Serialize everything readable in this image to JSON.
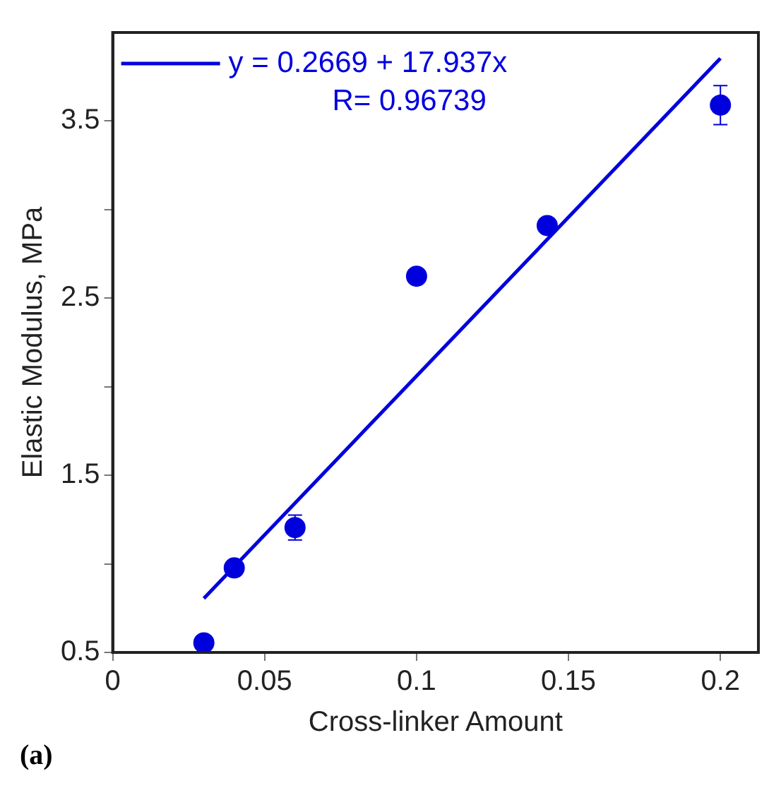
{
  "chart_data": {
    "type": "scatter",
    "xlabel": "Cross-linker Amount",
    "ylabel": "Elastic Modulus, MPa",
    "xlim": [
      0,
      0.2125
    ],
    "xticks": [
      0,
      0.05,
      0.1,
      0.15,
      0.2
    ],
    "ylim": [
      0.5,
      4.0
    ],
    "yticks": [
      0.5,
      {
        "value": 1,
        "label": null
      },
      1.5,
      {
        "value": 2,
        "label": null
      },
      2.5,
      {
        "value": 3,
        "label": null
      },
      3.5
    ],
    "grid": false,
    "legend": "top left",
    "series": [
      {
        "marker": "circle",
        "color": "#0000dd",
        "x": [
          0.03,
          0.04,
          0.06,
          0.1,
          0.143,
          0.2
        ],
        "values": [
          0.554,
          0.977,
          1.205,
          2.624,
          2.91,
          3.59
        ],
        "errors": [
          null,
          null,
          0.07,
          null,
          null,
          0.11
        ]
      },
      {
        "type": "line",
        "marker": "none",
        "name": "y = 0.2669 + 17.937x",
        "color": "#0000dd",
        "x": [
          0.03,
          0.2
        ],
        "values": [
          0.805,
          3.854
        ]
      }
    ],
    "annotations": [
      "R= 0.96739",
      "(a)"
    ]
  }
}
